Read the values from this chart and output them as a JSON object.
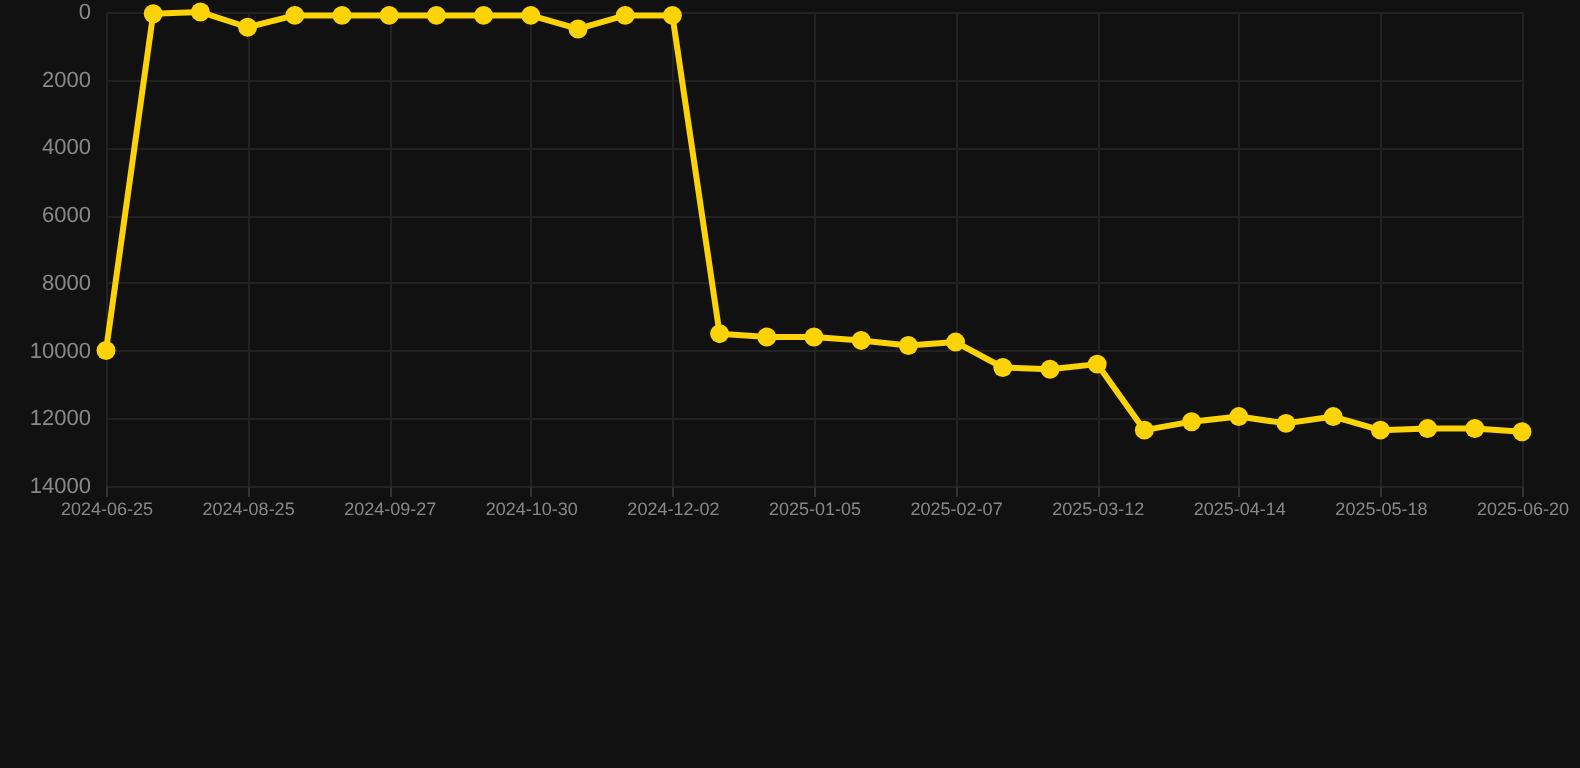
{
  "chart_data": {
    "type": "line",
    "categories": [
      "2024-06-25",
      null,
      null,
      "2024-08-25",
      null,
      null,
      "2024-09-27",
      null,
      null,
      "2024-10-30",
      null,
      null,
      "2024-12-02",
      null,
      null,
      "2025-01-05",
      null,
      null,
      "2025-02-07",
      null,
      null,
      "2025-03-12",
      null,
      null,
      "2025-04-14",
      null,
      null,
      "2025-05-18",
      null,
      null,
      "2025-06-20"
    ],
    "series": [
      {
        "color": "#fcd307",
        "values": [
          10000,
          50,
          0,
          450,
          100,
          100,
          100,
          100,
          100,
          100,
          500,
          100,
          100,
          9500,
          9600,
          9600,
          9700,
          9850,
          9750,
          10500,
          10550,
          10400,
          12350,
          12100,
          11950,
          12150,
          11950,
          12350,
          12300,
          12300,
          12400
        ]
      }
    ],
    "ylim": [
      14000,
      0
    ],
    "yticks": [
      0,
      2000,
      4000,
      6000,
      8000,
      10000,
      12000,
      14000
    ],
    "grid": true,
    "marker": "circle",
    "line_style": "solid"
  }
}
